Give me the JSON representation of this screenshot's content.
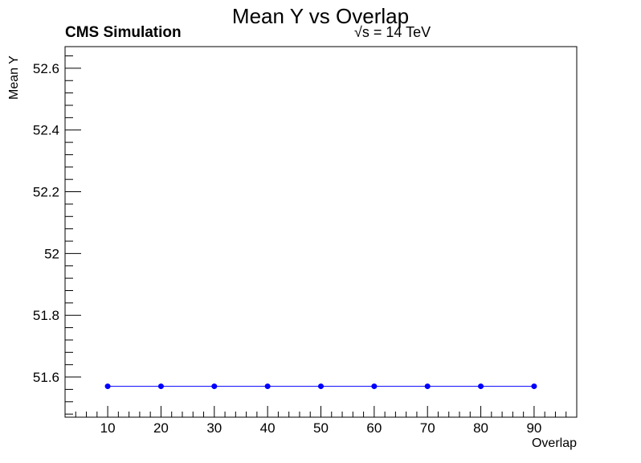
{
  "chart_data": {
    "type": "line",
    "title": "Mean Y vs Overlap",
    "annotations": {
      "left": "CMS Simulation",
      "right": "√s = 14 TeV"
    },
    "xlabel": "Overlap",
    "ylabel": "Mean Y",
    "xlim": [
      2,
      98
    ],
    "ylim": [
      51.47,
      52.67
    ],
    "x_ticks": [
      10,
      20,
      30,
      40,
      50,
      60,
      70,
      80,
      90
    ],
    "x_tick_labels": [
      "10",
      "20",
      "30",
      "40",
      "50",
      "60",
      "70",
      "80",
      "90"
    ],
    "y_ticks": [
      51.6,
      51.8,
      52.0,
      52.2,
      52.4,
      52.6
    ],
    "y_tick_labels": [
      "51.6",
      "51.8",
      "52",
      "52.2",
      "52.4",
      "52.6"
    ],
    "grid": false,
    "series": [
      {
        "color": "#0000ff",
        "x": [
          10,
          20,
          30,
          40,
          50,
          60,
          70,
          80,
          90
        ],
        "y": [
          51.57,
          51.57,
          51.57,
          51.57,
          51.57,
          51.57,
          51.57,
          51.57,
          51.57
        ]
      }
    ]
  }
}
